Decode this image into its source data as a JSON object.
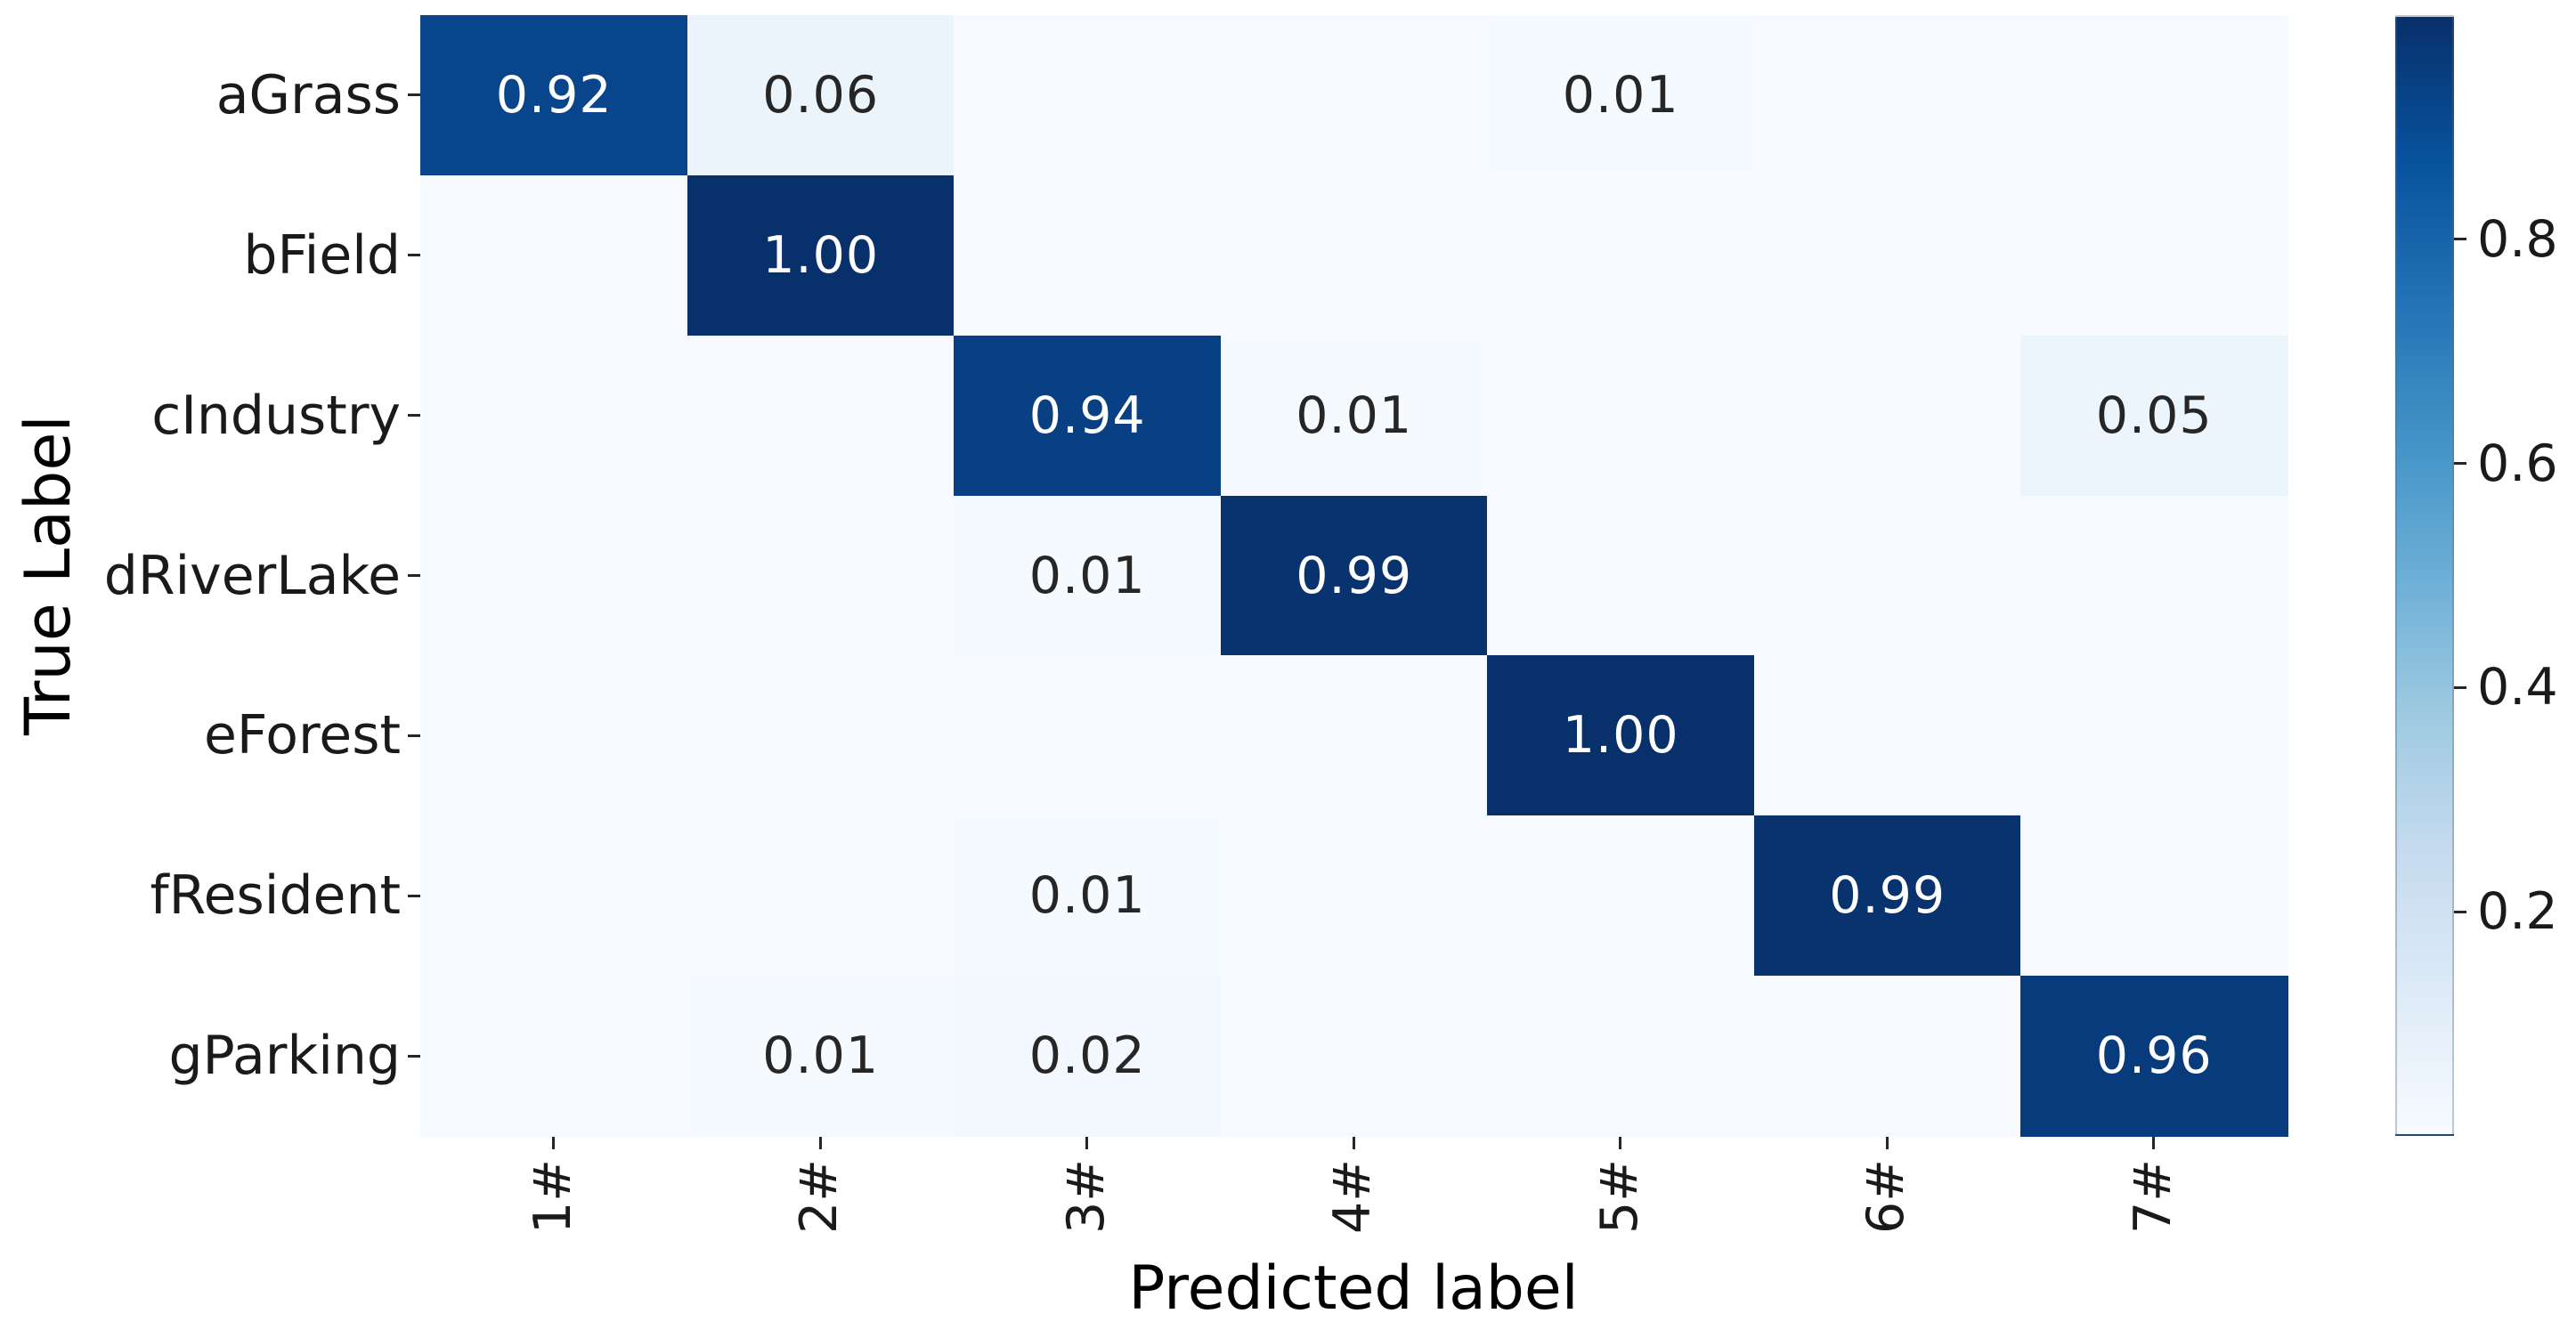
{
  "chart_data": {
    "type": "heatmap",
    "subtype": "confusion-matrix",
    "title": "",
    "xlabel": "Predicted label",
    "ylabel": "True Label",
    "x_categories": [
      "1#",
      "2#",
      "3#",
      "4#",
      "5#",
      "6#",
      "7#"
    ],
    "y_categories": [
      "aGrass",
      "bField",
      "cIndustry",
      "dRiverLake",
      "eForest",
      "fResident",
      "gParking"
    ],
    "matrix": [
      [
        0.92,
        0.06,
        0.0,
        0.0,
        0.01,
        0.0,
        0.0
      ],
      [
        0.0,
        1.0,
        0.0,
        0.0,
        0.0,
        0.0,
        0.0
      ],
      [
        0.0,
        0.0,
        0.94,
        0.01,
        0.0,
        0.0,
        0.05
      ],
      [
        0.0,
        0.0,
        0.01,
        0.99,
        0.0,
        0.0,
        0.0
      ],
      [
        0.0,
        0.0,
        0.0,
        0.0,
        1.0,
        0.0,
        0.0
      ],
      [
        0.0,
        0.0,
        0.01,
        0.0,
        0.0,
        0.99,
        0.0
      ],
      [
        0.0,
        0.01,
        0.02,
        0.0,
        0.0,
        0.0,
        0.96
      ]
    ],
    "annotations": [
      [
        "0.92",
        "0.06",
        "",
        "",
        "0.01",
        "",
        ""
      ],
      [
        "",
        "1.00",
        "",
        "",
        "",
        "",
        ""
      ],
      [
        "",
        "",
        "0.94",
        "0.01",
        "",
        "",
        "0.05"
      ],
      [
        "",
        "",
        "0.01",
        "0.99",
        "",
        "",
        ""
      ],
      [
        "",
        "",
        "",
        "",
        "1.00",
        "",
        ""
      ],
      [
        "",
        "",
        "0.01",
        "",
        "",
        "0.99",
        ""
      ],
      [
        "",
        "0.01",
        "0.02",
        "",
        "",
        "",
        "0.96"
      ]
    ],
    "colormap": "Blues",
    "vmin": 0,
    "vmax": 1,
    "grid": false,
    "colorbar": {
      "position": "right",
      "tick_labels": [
        "0.2",
        "0.4",
        "0.6",
        "0.8"
      ],
      "tick_values": [
        0.2,
        0.4,
        0.6,
        0.8
      ]
    }
  },
  "colors": {
    "background": "#ffffff",
    "annotation_on_dark": "#ffffff",
    "annotation_on_light": "#262626",
    "tick_color": "#262626",
    "colormap_stops": [
      [
        0.0,
        "#f7fbff"
      ],
      [
        0.125,
        "#deebf7"
      ],
      [
        0.25,
        "#c6dbef"
      ],
      [
        0.375,
        "#9ecae1"
      ],
      [
        0.5,
        "#6baed6"
      ],
      [
        0.625,
        "#4292c6"
      ],
      [
        0.75,
        "#2171b5"
      ],
      [
        0.875,
        "#08519c"
      ],
      [
        1.0,
        "#08306b"
      ]
    ]
  }
}
